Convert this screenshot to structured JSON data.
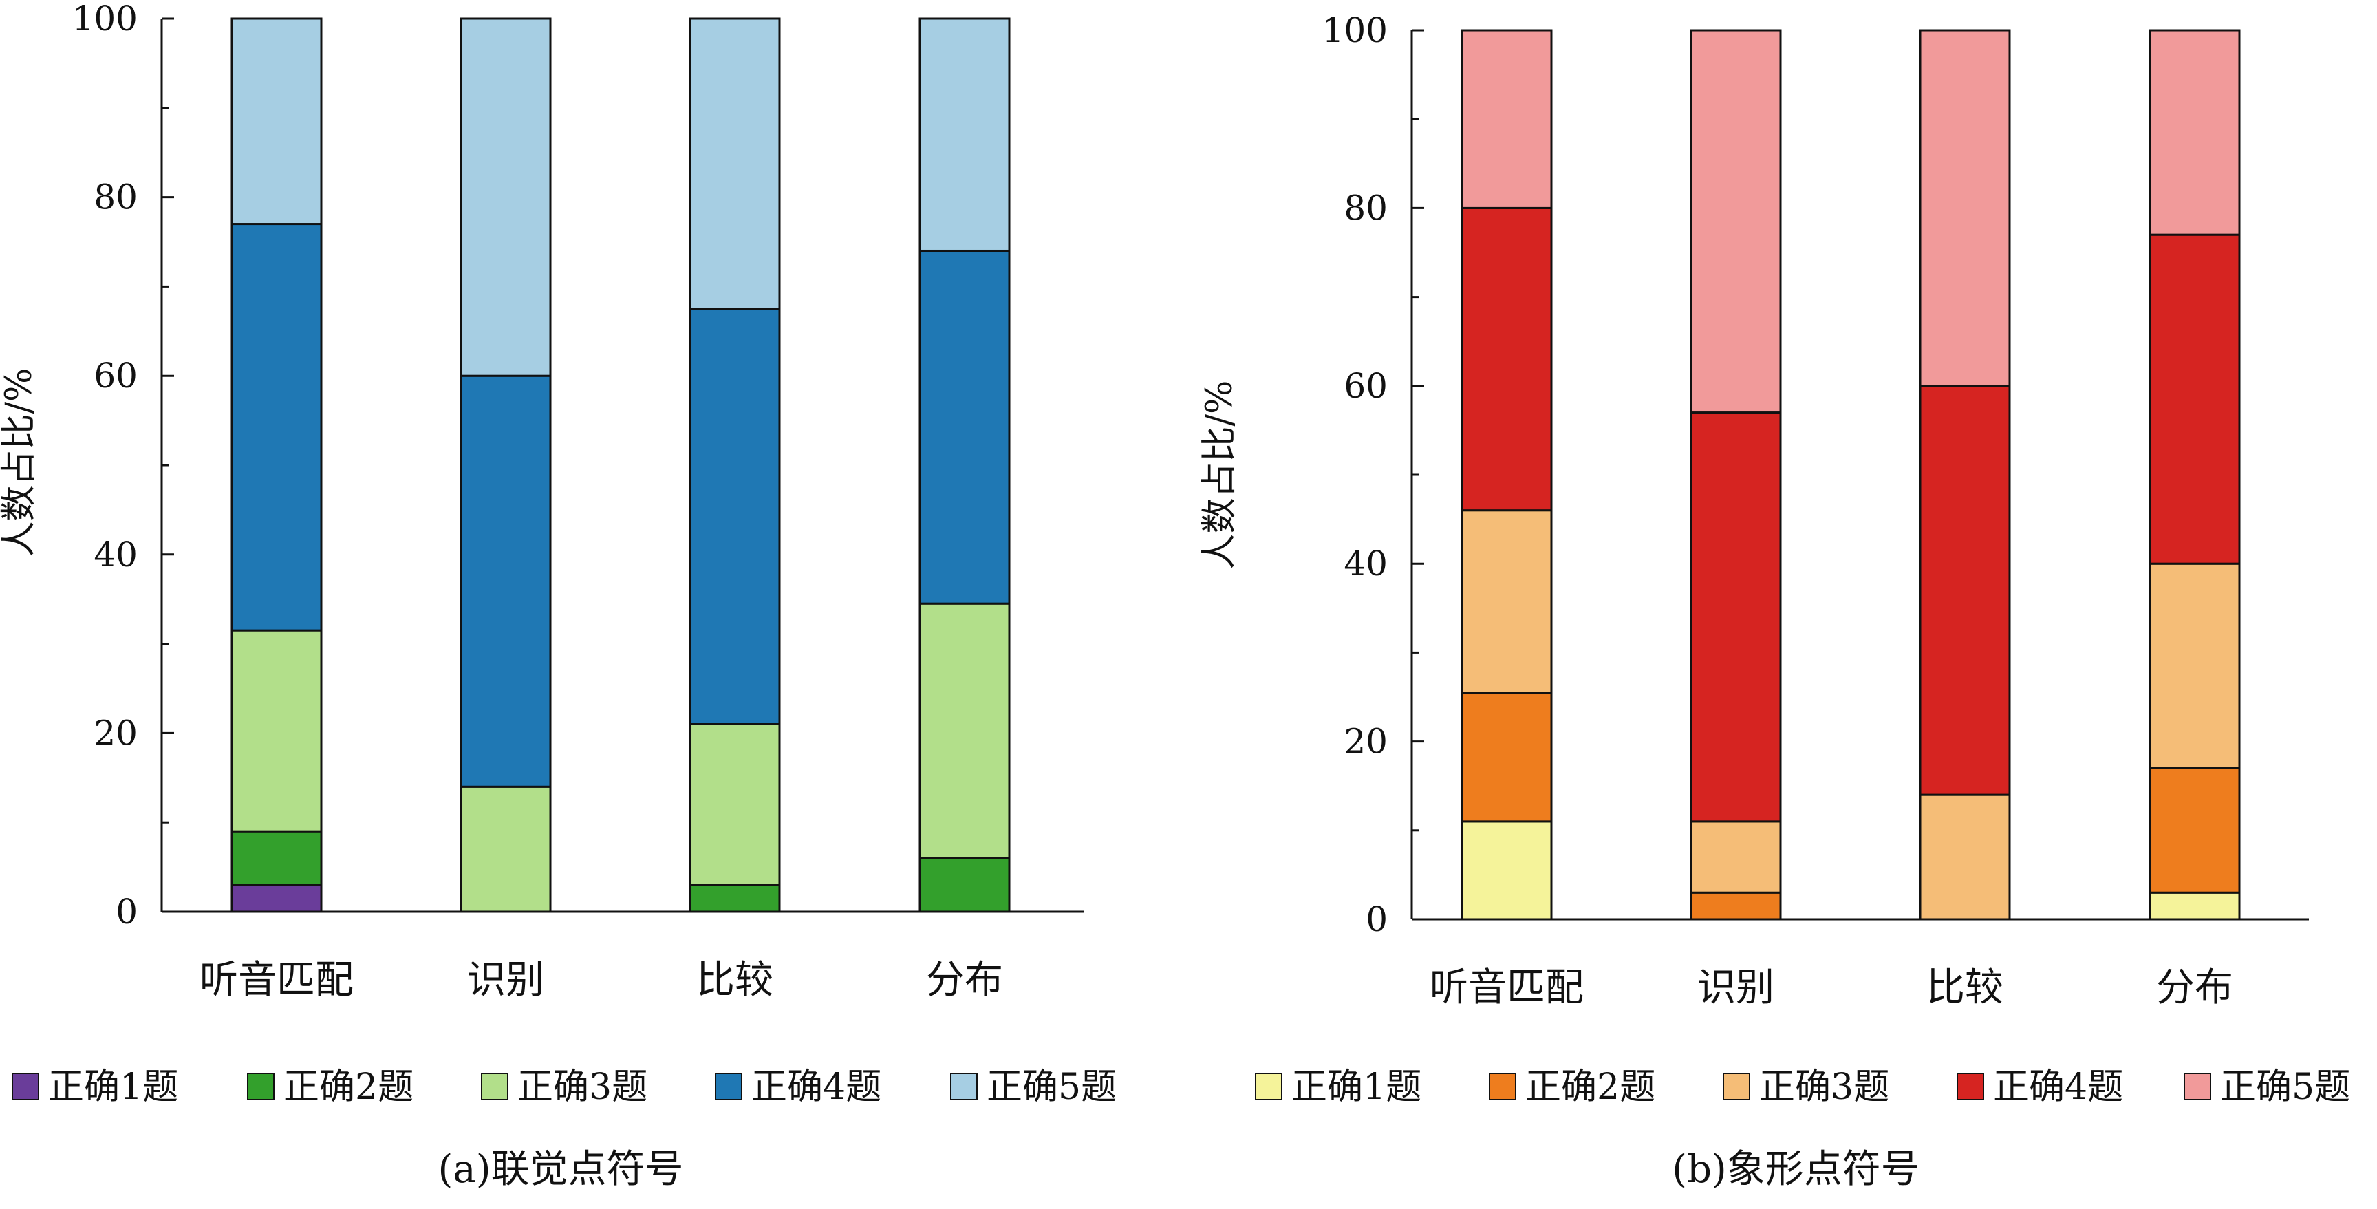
{
  "chart_data": [
    {
      "type": "bar",
      "stacked": true,
      "title": "",
      "caption": "(a)联觉点符号",
      "xlabel": "",
      "ylabel": "人数占比/%",
      "ylim": [
        0,
        100
      ],
      "yticks": [
        "0",
        "20",
        "40",
        "60",
        "80",
        "100"
      ],
      "grid": false,
      "legend_position": "bottom",
      "categories": [
        "听音匹配",
        "识别",
        "比较",
        "分布"
      ],
      "series": [
        {
          "name": "正确1题",
          "color": "#6a3d9a",
          "values": [
            3,
            0,
            0,
            0
          ]
        },
        {
          "name": "正确2题",
          "color": "#33a02c",
          "values": [
            6,
            0,
            3,
            6
          ]
        },
        {
          "name": "正确3题",
          "color": "#b2df8a",
          "values": [
            22.5,
            14,
            18,
            28.5
          ]
        },
        {
          "name": "正确4题",
          "color": "#1f78b4",
          "values": [
            45.5,
            46,
            46.5,
            39.5
          ]
        },
        {
          "name": "正确5题",
          "color": "#a6cee3",
          "values": [
            23,
            40,
            32.5,
            26
          ]
        }
      ]
    },
    {
      "type": "bar",
      "stacked": true,
      "title": "",
      "caption": "(b)象形点符号",
      "xlabel": "",
      "ylabel": "人数占比/%",
      "ylim": [
        0,
        100
      ],
      "yticks": [
        "0",
        "20",
        "40",
        "60",
        "80",
        "100"
      ],
      "grid": false,
      "legend_position": "bottom",
      "categories": [
        "听音匹配",
        "识别",
        "比较",
        "分布"
      ],
      "series": [
        {
          "name": "正确1题",
          "color": "#f5f39a",
          "values": [
            11,
            0,
            0,
            3
          ]
        },
        {
          "name": "正确2题",
          "color": "#ee7d1e",
          "values": [
            14.5,
            3,
            0,
            14
          ]
        },
        {
          "name": "正确3题",
          "color": "#f5bd77",
          "values": [
            20.5,
            8,
            14,
            23
          ]
        },
        {
          "name": "正确4题",
          "color": "#d62421",
          "values": [
            34,
            46,
            46,
            37
          ]
        },
        {
          "name": "正确5题",
          "color": "#f19a9a",
          "values": [
            20,
            43,
            40,
            23
          ]
        }
      ]
    }
  ]
}
